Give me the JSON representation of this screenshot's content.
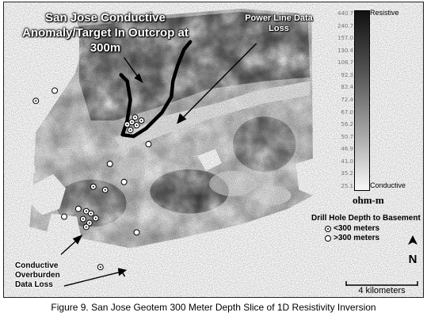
{
  "map": {
    "annotations": {
      "anomaly_target": "San Jose Conductive Anomaly/Target In Outcrop at 300m",
      "power_line": "Power Line Data Loss",
      "overburden": "Conductive Overburden Data Loss"
    }
  },
  "colorbar": {
    "ticks": [
      "440.7",
      "240.7",
      "157.0",
      "130.4",
      "108.7",
      "92.3",
      "82.4",
      "72.4",
      "67.0",
      "56.2",
      "50.7",
      "46.9",
      "41.0",
      "35.2",
      "25.1"
    ],
    "high_label": "Resistive",
    "low_label": "Conductive",
    "unit": "ohm-m",
    "colors": {
      "high": "#111111",
      "low": "#f8f8f8"
    }
  },
  "legend": {
    "title": "Drill Hole Depth to Basement",
    "items": [
      {
        "symbol": "dotted-circle-icon",
        "label": "<300 meters"
      },
      {
        "symbol": "open-circle-icon",
        "label": ">300 meters"
      }
    ]
  },
  "north_arrow": {
    "label": "N"
  },
  "scale_bar": {
    "label": "4 kilometers"
  },
  "caption": "Figure 9.  San Jose Geotem 300 Meter Depth Slice of 1D Resistivity Inversion"
}
